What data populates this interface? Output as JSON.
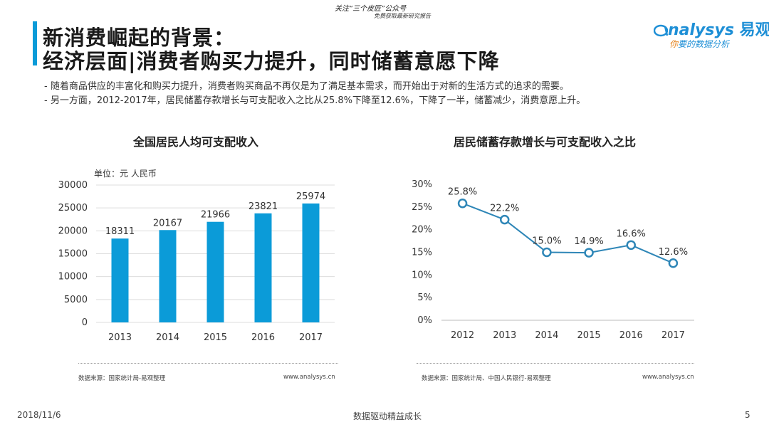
{
  "header": {
    "banner_text": "关注“三个皮匠”公众号",
    "banner_sub": "免费获取最新研究报告",
    "title_line1": "新消费崛起的背景：",
    "title_line2": "经济层面|消费者购买力提升，同时储蓄意愿下降",
    "logo_name": "nalysys",
    "logo_cn": "易观",
    "logo_tagline_first": "你",
    "logo_tagline_rest": "要的数据分析",
    "accent_color": "#0b9bd8"
  },
  "bullets": [
    "-  随着商品供应的丰富化和购买力提升，消费者购买商品不再仅是为了满足基本需求，而开始出于对新的生活方式的追求的需要。",
    "-  另一方面，2012-2017年，居民储蓄存款增长与可支配收入之比从25.8%下降至12.6%，下降了一半，储蓄减少，消费意愿上升。"
  ],
  "chart_data": [
    {
      "type": "bar",
      "title": "全国居民人均可支配收入",
      "unit_label": "单位：元 人民币",
      "categories": [
        "2013",
        "2014",
        "2015",
        "2016",
        "2017"
      ],
      "values": [
        18311,
        20167,
        21966,
        23821,
        25974
      ],
      "ylim": [
        0,
        30000
      ],
      "yticks": [
        "0",
        "5000",
        "10000",
        "15000",
        "20000",
        "25000",
        "30000"
      ],
      "color": "#0b9bd8",
      "source": "数据来源：国家统计局-易观整理",
      "url": "www.analysys.cn"
    },
    {
      "type": "line",
      "title": "居民储蓄存款增长与可支配收入之比",
      "categories": [
        "2012",
        "2013",
        "2014",
        "2015",
        "2016",
        "2017"
      ],
      "values": [
        25.8,
        22.2,
        15.0,
        14.9,
        16.6,
        12.6
      ],
      "value_labels": [
        "25.8%",
        "22.2%",
        "15.0%",
        "14.9%",
        "16.6%",
        "12.6%"
      ],
      "ylim": [
        0,
        30
      ],
      "yticks": [
        "0%",
        "5%",
        "10%",
        "15%",
        "20%",
        "25%",
        "30%"
      ],
      "color": "#2e86b7",
      "source": "数据来源：国家统计局、中国人民银行-易观整理",
      "url": "www.analysys.cn"
    }
  ],
  "footer": {
    "date": "2018/11/6",
    "center": "数据驱动精益成长",
    "page": "5"
  }
}
